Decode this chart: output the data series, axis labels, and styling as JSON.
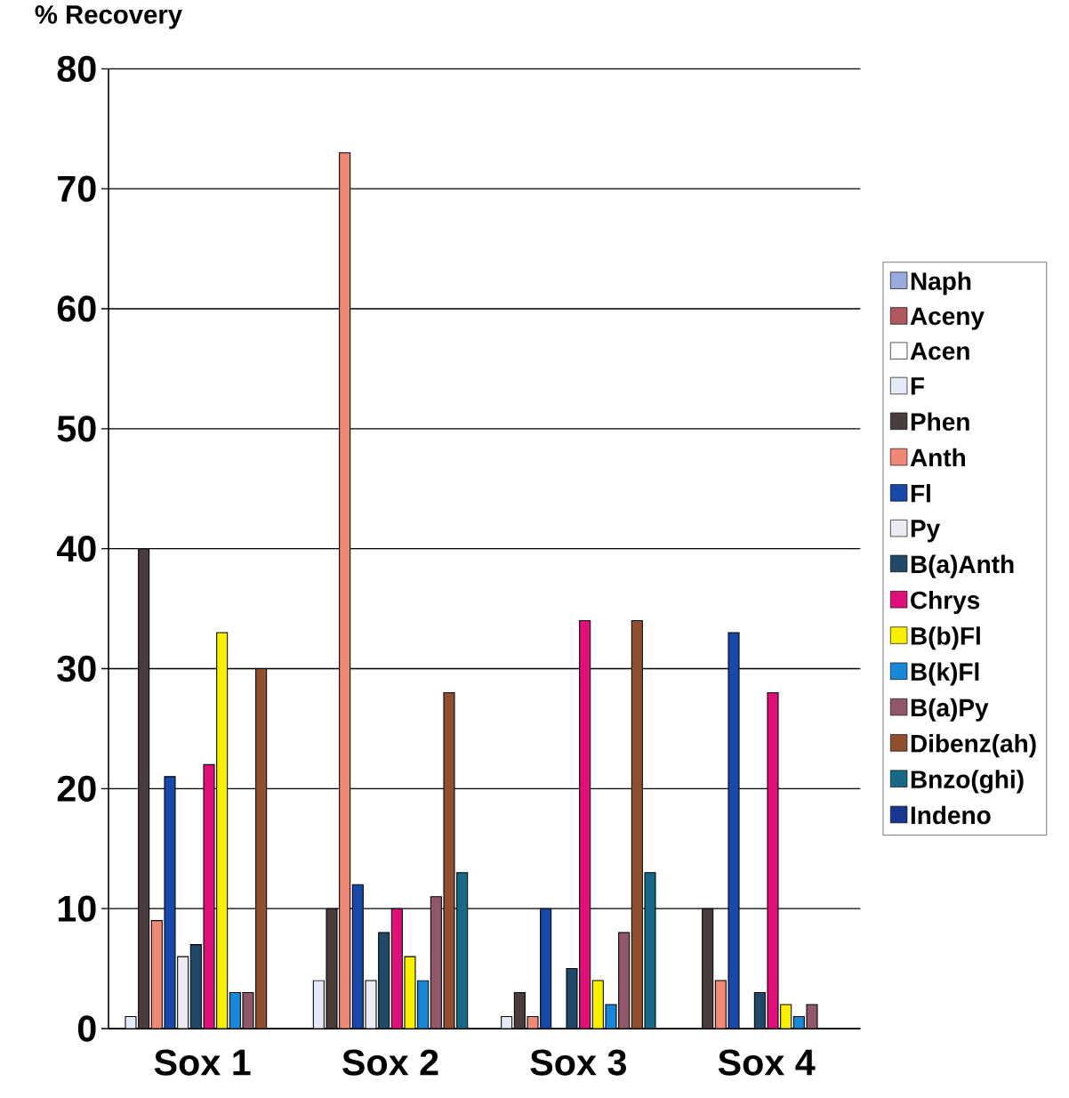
{
  "chart_data": {
    "type": "bar",
    "ylabel": "% Recovery",
    "categories": [
      "Sox 1",
      "Sox 2",
      "Sox 3",
      "Sox 4"
    ],
    "ylim": [
      0,
      80
    ],
    "yticks": [
      0,
      10,
      20,
      30,
      40,
      50,
      60,
      70,
      80
    ],
    "grid": "y",
    "legend": "right",
    "series": [
      {
        "name": "Naph",
        "color": "#99aadd",
        "values": [
          null,
          null,
          null,
          null
        ]
      },
      {
        "name": "Aceny",
        "color": "#b05860",
        "values": [
          null,
          null,
          null,
          null
        ]
      },
      {
        "name": "Acen",
        "color": "#ffffff",
        "values": [
          null,
          null,
          null,
          null
        ]
      },
      {
        "name": "F",
        "color": "#e4eaf8",
        "values": [
          1,
          4,
          1,
          null
        ]
      },
      {
        "name": "Phen",
        "color": "#4a3c3c",
        "values": [
          40,
          10,
          3,
          10
        ]
      },
      {
        "name": "Anth",
        "color": "#f08878",
        "values": [
          9,
          73,
          1,
          4
        ]
      },
      {
        "name": "Fl",
        "color": "#1848a8",
        "values": [
          21,
          12,
          10,
          33
        ]
      },
      {
        "name": "Py",
        "color": "#ecebf4",
        "values": [
          6,
          4,
          null,
          null
        ]
      },
      {
        "name": "B(a)Anth",
        "color": "#204868",
        "values": [
          7,
          8,
          5,
          3
        ]
      },
      {
        "name": "Chrys",
        "color": "#e0107a",
        "values": [
          22,
          10,
          34,
          28
        ]
      },
      {
        "name": "B(b)Fl",
        "color": "#f8f000",
        "values": [
          33,
          6,
          4,
          2
        ]
      },
      {
        "name": "B(k)Fl",
        "color": "#1888d8",
        "values": [
          3,
          4,
          2,
          1
        ]
      },
      {
        "name": "B(a)Py",
        "color": "#905868",
        "values": [
          3,
          11,
          8,
          2
        ]
      },
      {
        "name": "Dibenz(ah)",
        "color": "#905030",
        "values": [
          30,
          28,
          34,
          null
        ]
      },
      {
        "name": "Bnzo(ghi)",
        "color": "#186888",
        "values": [
          null,
          13,
          13,
          null
        ]
      },
      {
        "name": "Indeno",
        "color": "#183890",
        "values": [
          null,
          null,
          null,
          null
        ]
      }
    ]
  }
}
